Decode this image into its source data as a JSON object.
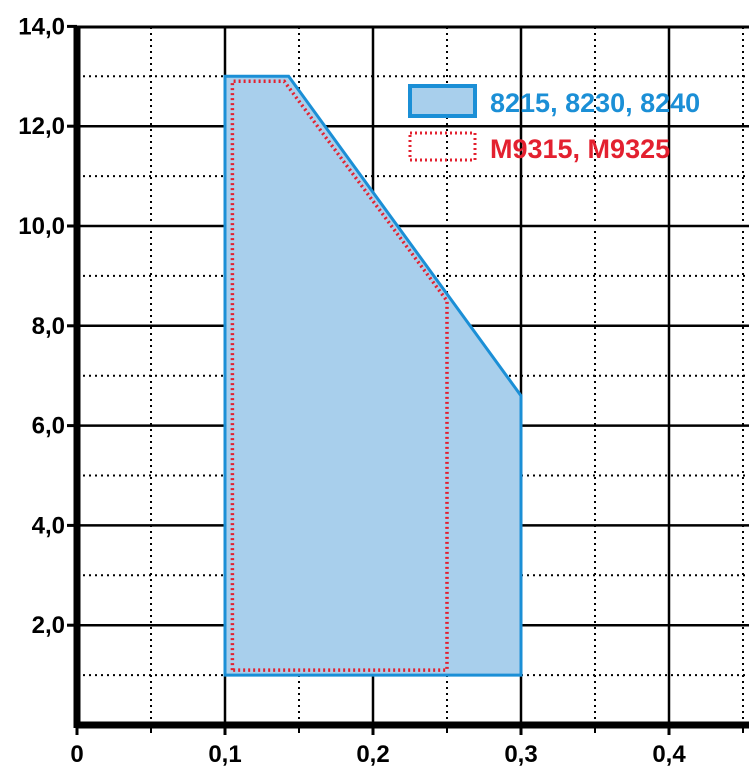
{
  "chart_data": {
    "type": "area",
    "x_ticks": [
      "0",
      "0,1",
      "0,2",
      "0,3",
      "0,4"
    ],
    "x_tick_values": [
      0,
      0.1,
      0.2,
      0.3,
      0.4
    ],
    "y_ticks": [
      "2,0",
      "4,0",
      "6,0",
      "8,0",
      "10,0",
      "12,0",
      "14,0"
    ],
    "y_tick_values": [
      2,
      4,
      6,
      8,
      10,
      12,
      14
    ],
    "xlim": [
      0,
      0.45
    ],
    "ylim": [
      0,
      14
    ],
    "grid": true,
    "legend_position": "top-right",
    "series": [
      {
        "name": "8215, 8230, 8240",
        "color": "#1b8fd6",
        "fill": "#a8cfec",
        "polygon": [
          [
            0.1,
            1.0
          ],
          [
            0.1,
            13.0
          ],
          [
            0.143,
            13.0
          ],
          [
            0.3,
            6.6
          ],
          [
            0.3,
            1.0
          ]
        ]
      },
      {
        "name": "M9315, M9325",
        "color": "#e3202f",
        "fill": "none",
        "polygon": [
          [
            0.105,
            1.1
          ],
          [
            0.105,
            12.9
          ],
          [
            0.14,
            12.9
          ],
          [
            0.25,
            8.5
          ],
          [
            0.25,
            1.1
          ]
        ]
      }
    ]
  }
}
